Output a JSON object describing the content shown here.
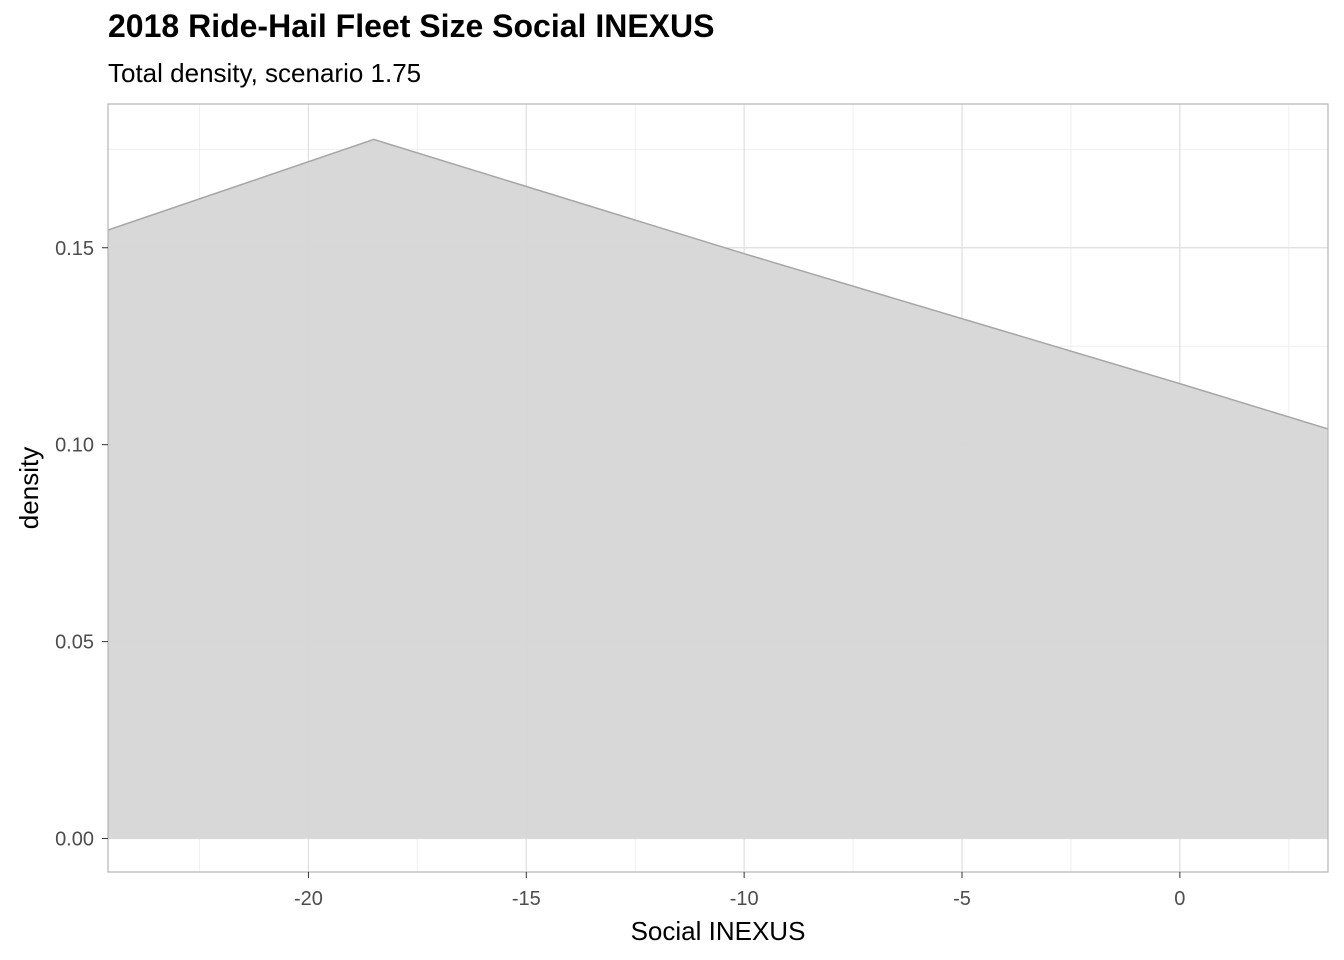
{
  "chart_data": {
    "type": "area",
    "title": "2018 Ride-Hail Fleet Size Social INEXUS",
    "subtitle": "Total density, scenario 1.75",
    "xlabel": "Social INEXUS",
    "ylabel": "density",
    "xlim": [
      -24.6,
      3.4
    ],
    "ylim": [
      -0.0085,
      0.1865
    ],
    "x_ticks": [
      -20,
      -15,
      -10,
      -5,
      0
    ],
    "x_tick_labels": [
      "-20",
      "-15",
      "-10",
      "-5",
      "0"
    ],
    "y_ticks": [
      0,
      0.05,
      0.1,
      0.15
    ],
    "y_tick_labels": [
      "0.00",
      "0.05",
      "0.10",
      "0.15"
    ],
    "grid": true,
    "fill_color": "#d6d6d6",
    "line_color": "#a6a6a6",
    "series": [
      {
        "x": [
          -24.6,
          -18.5,
          -10,
          0,
          3.4
        ],
        "y": [
          0.1545,
          0.1775,
          0.1485,
          0.1155,
          0.104
        ]
      }
    ]
  }
}
